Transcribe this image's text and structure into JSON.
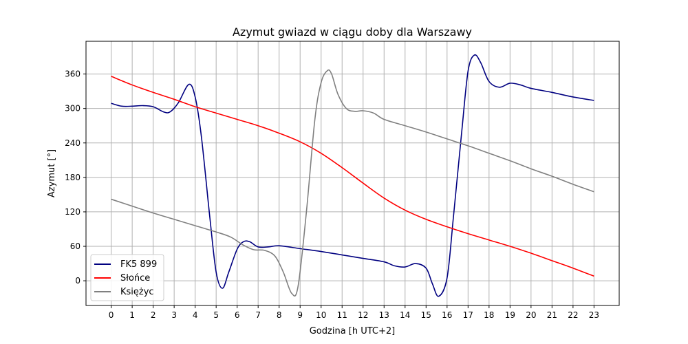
{
  "chart_data": {
    "type": "line",
    "title": "Azymut gwiazd w ciągu doby dla Warszawy",
    "xlabel": "Godzina [h UTC+2]",
    "ylabel": "Azymut [°]",
    "xlim": [
      -1.2,
      24.2
    ],
    "ylim": [
      -43,
      417
    ],
    "x_ticks": [
      0,
      1,
      2,
      3,
      4,
      5,
      6,
      7,
      8,
      9,
      10,
      11,
      12,
      13,
      14,
      15,
      16,
      17,
      18,
      19,
      20,
      21,
      22,
      23
    ],
    "y_ticks": [
      0,
      60,
      120,
      180,
      240,
      300,
      360
    ],
    "grid": true,
    "legend_position": "lower-left",
    "series": [
      {
        "name": "FK5 899",
        "color": "#000080",
        "points": [
          [
            0,
            309
          ],
          [
            0.5,
            304
          ],
          [
            1,
            304
          ],
          [
            1.5,
            305
          ],
          [
            2,
            303
          ],
          [
            2.5,
            294
          ],
          [
            2.8,
            294
          ],
          [
            3.2,
            310
          ],
          [
            3.7,
            342
          ],
          [
            4.0,
            320
          ],
          [
            4.3,
            250
          ],
          [
            4.7,
            110
          ],
          [
            5.0,
            15
          ],
          [
            5.3,
            -13
          ],
          [
            5.6,
            15
          ],
          [
            6.0,
            55
          ],
          [
            6.3,
            68
          ],
          [
            6.6,
            68
          ],
          [
            7.0,
            59
          ],
          [
            7.5,
            59
          ],
          [
            8.0,
            61
          ],
          [
            9.0,
            56
          ],
          [
            10,
            51
          ],
          [
            11,
            45
          ],
          [
            12,
            39
          ],
          [
            13,
            33
          ],
          [
            13.5,
            26
          ],
          [
            14.0,
            24
          ],
          [
            14.5,
            30
          ],
          [
            15.0,
            22
          ],
          [
            15.3,
            -5
          ],
          [
            15.6,
            -27
          ],
          [
            16.0,
            5
          ],
          [
            16.3,
            110
          ],
          [
            16.7,
            260
          ],
          [
            17.0,
            365
          ],
          [
            17.3,
            393
          ],
          [
            17.6,
            380
          ],
          [
            18.0,
            347
          ],
          [
            18.5,
            337
          ],
          [
            19,
            344
          ],
          [
            19.5,
            341
          ],
          [
            20,
            335
          ],
          [
            21,
            328
          ],
          [
            22,
            320
          ],
          [
            23,
            314
          ]
        ]
      },
      {
        "name": "Słońce",
        "color": "#ff0000",
        "points": [
          [
            0,
            356
          ],
          [
            1,
            341
          ],
          [
            2,
            328
          ],
          [
            3,
            316
          ],
          [
            4,
            303
          ],
          [
            5,
            292
          ],
          [
            6,
            281
          ],
          [
            7,
            270
          ],
          [
            8,
            257
          ],
          [
            9,
            242
          ],
          [
            10,
            222
          ],
          [
            11,
            197
          ],
          [
            12,
            170
          ],
          [
            13,
            144
          ],
          [
            14,
            123
          ],
          [
            15,
            107
          ],
          [
            16,
            94
          ],
          [
            17,
            82
          ],
          [
            18,
            71
          ],
          [
            19,
            60
          ],
          [
            20,
            48
          ],
          [
            21,
            35
          ],
          [
            22,
            22
          ],
          [
            23,
            8
          ]
        ]
      },
      {
        "name": "Księżyc",
        "color": "#808080",
        "points": [
          [
            0,
            142
          ],
          [
            1,
            130
          ],
          [
            2,
            118
          ],
          [
            3,
            107
          ],
          [
            4,
            96
          ],
          [
            5,
            85
          ],
          [
            5.7,
            76
          ],
          [
            6.3,
            62
          ],
          [
            6.8,
            54
          ],
          [
            7.3,
            53
          ],
          [
            7.8,
            43
          ],
          [
            8.2,
            15
          ],
          [
            8.6,
            -22
          ],
          [
            8.9,
            -10
          ],
          [
            9.3,
            120
          ],
          [
            9.7,
            280
          ],
          [
            10.0,
            345
          ],
          [
            10.3,
            366
          ],
          [
            10.5,
            360
          ],
          [
            10.8,
            325
          ],
          [
            11.2,
            300
          ],
          [
            11.6,
            295
          ],
          [
            12.0,
            296
          ],
          [
            12.5,
            292
          ],
          [
            13,
            281
          ],
          [
            14,
            270
          ],
          [
            15,
            259
          ],
          [
            16,
            247
          ],
          [
            17,
            235
          ],
          [
            18,
            222
          ],
          [
            19,
            209
          ],
          [
            20,
            195
          ],
          [
            21,
            182
          ],
          [
            22,
            168
          ],
          [
            23,
            155
          ]
        ]
      }
    ]
  }
}
